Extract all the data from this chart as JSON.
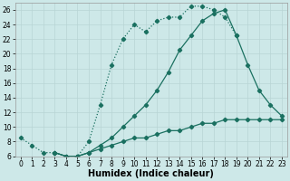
{
  "xlabel": "Humidex (Indice chaleur)",
  "xlim": [
    -0.5,
    23.5
  ],
  "ylim": [
    6,
    27
  ],
  "xticks": [
    0,
    1,
    2,
    3,
    4,
    5,
    6,
    7,
    8,
    9,
    10,
    11,
    12,
    13,
    14,
    15,
    16,
    17,
    18,
    19,
    20,
    21,
    22,
    23
  ],
  "yticks": [
    6,
    8,
    10,
    12,
    14,
    16,
    18,
    20,
    22,
    24,
    26
  ],
  "bg_color": "#cde8e8",
  "line_color": "#1a7060",
  "line1_x": [
    0,
    1,
    2,
    3,
    4,
    5,
    6,
    7,
    8,
    9,
    10,
    11,
    12,
    13,
    14,
    15,
    16,
    17,
    18,
    19
  ],
  "line1_y": [
    8.5,
    7.5,
    6.5,
    6.5,
    6.0,
    6.0,
    8.0,
    13.0,
    18.5,
    22.0,
    24.0,
    23.0,
    24.5,
    25.0,
    25.0,
    26.5,
    26.5,
    26.0,
    25.0,
    22.5
  ],
  "line2_x": [
    3,
    4,
    5,
    6,
    7,
    8,
    9,
    10,
    11,
    12,
    13,
    14,
    15,
    16,
    17,
    18,
    19,
    20,
    21,
    22,
    23
  ],
  "line2_y": [
    6.5,
    6.0,
    6.0,
    6.5,
    7.5,
    8.5,
    10.0,
    11.5,
    13.0,
    15.0,
    17.5,
    20.5,
    22.5,
    24.5,
    25.5,
    26.0,
    22.5,
    18.5,
    15.0,
    13.0,
    11.5
  ],
  "line3_x": [
    3,
    4,
    5,
    6,
    7,
    8,
    9,
    10,
    11,
    12,
    13,
    14,
    15,
    16,
    17,
    18,
    19,
    20,
    21,
    22,
    23
  ],
  "line3_y": [
    6.5,
    6.0,
    6.0,
    6.5,
    7.0,
    7.5,
    8.0,
    8.5,
    8.5,
    9.0,
    9.5,
    9.5,
    10.0,
    10.5,
    10.5,
    11.0,
    11.0,
    11.0,
    11.0,
    11.0,
    11.0
  ],
  "grid_color": "#b8d5d5",
  "tick_fontsize": 5.5,
  "label_fontsize": 7,
  "title_fontsize": 7
}
